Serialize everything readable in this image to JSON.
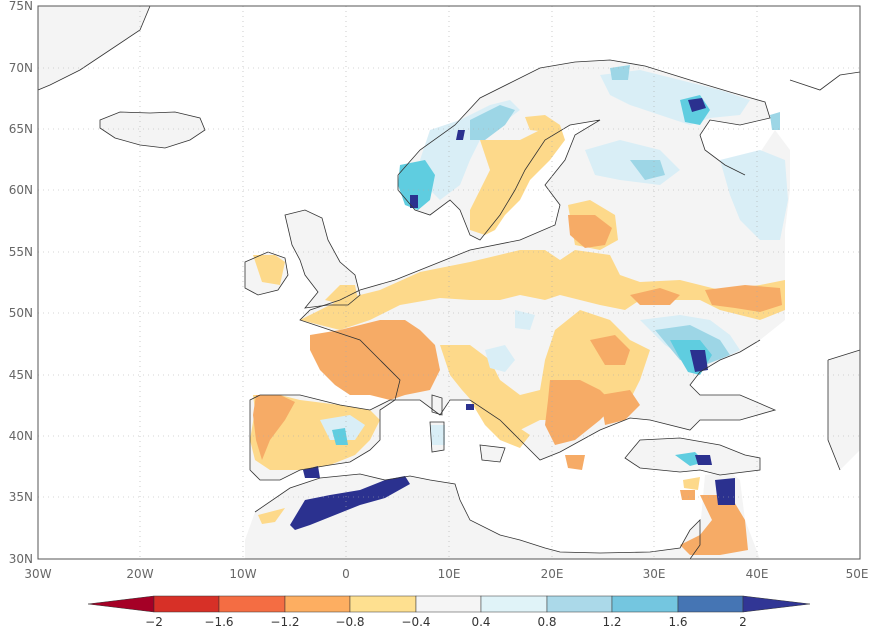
{
  "map": {
    "lat_labels": [
      "75N",
      "70N",
      "65N",
      "60N",
      "55N",
      "50N",
      "45N",
      "40N",
      "35N",
      "30N"
    ],
    "lon_labels": [
      "30W",
      "20W",
      "10W",
      "0",
      "10E",
      "20E",
      "30E",
      "40E",
      "50E"
    ],
    "lat_range": [
      30,
      75
    ],
    "lon_range": [
      -30,
      50
    ],
    "grid": "dotted"
  },
  "colorbar": {
    "labels": [
      "−2",
      "−1.6",
      "−1.2",
      "−0.8",
      "−0.4",
      "0.4",
      "0.8",
      "1.2",
      "1.6",
      "2"
    ],
    "colors": [
      "#a50026",
      "#d73027",
      "#f46d43",
      "#fdae61",
      "#fee090",
      "#f5f5f5",
      "#e0f3f8",
      "#abd9e9",
      "#74c6e0",
      "#4575b4",
      "#313695"
    ]
  },
  "colors": {
    "frame": "#555555",
    "coast": "#333333",
    "land_neutral": "#f4f4f4",
    "tan_light": "#fdd98a",
    "tan_dark": "#f6ab66",
    "blue_light": "#d9eef6",
    "blue_mid": "#9dd6e6",
    "cyan": "#5fcde0",
    "navy": "#2b318f"
  }
}
